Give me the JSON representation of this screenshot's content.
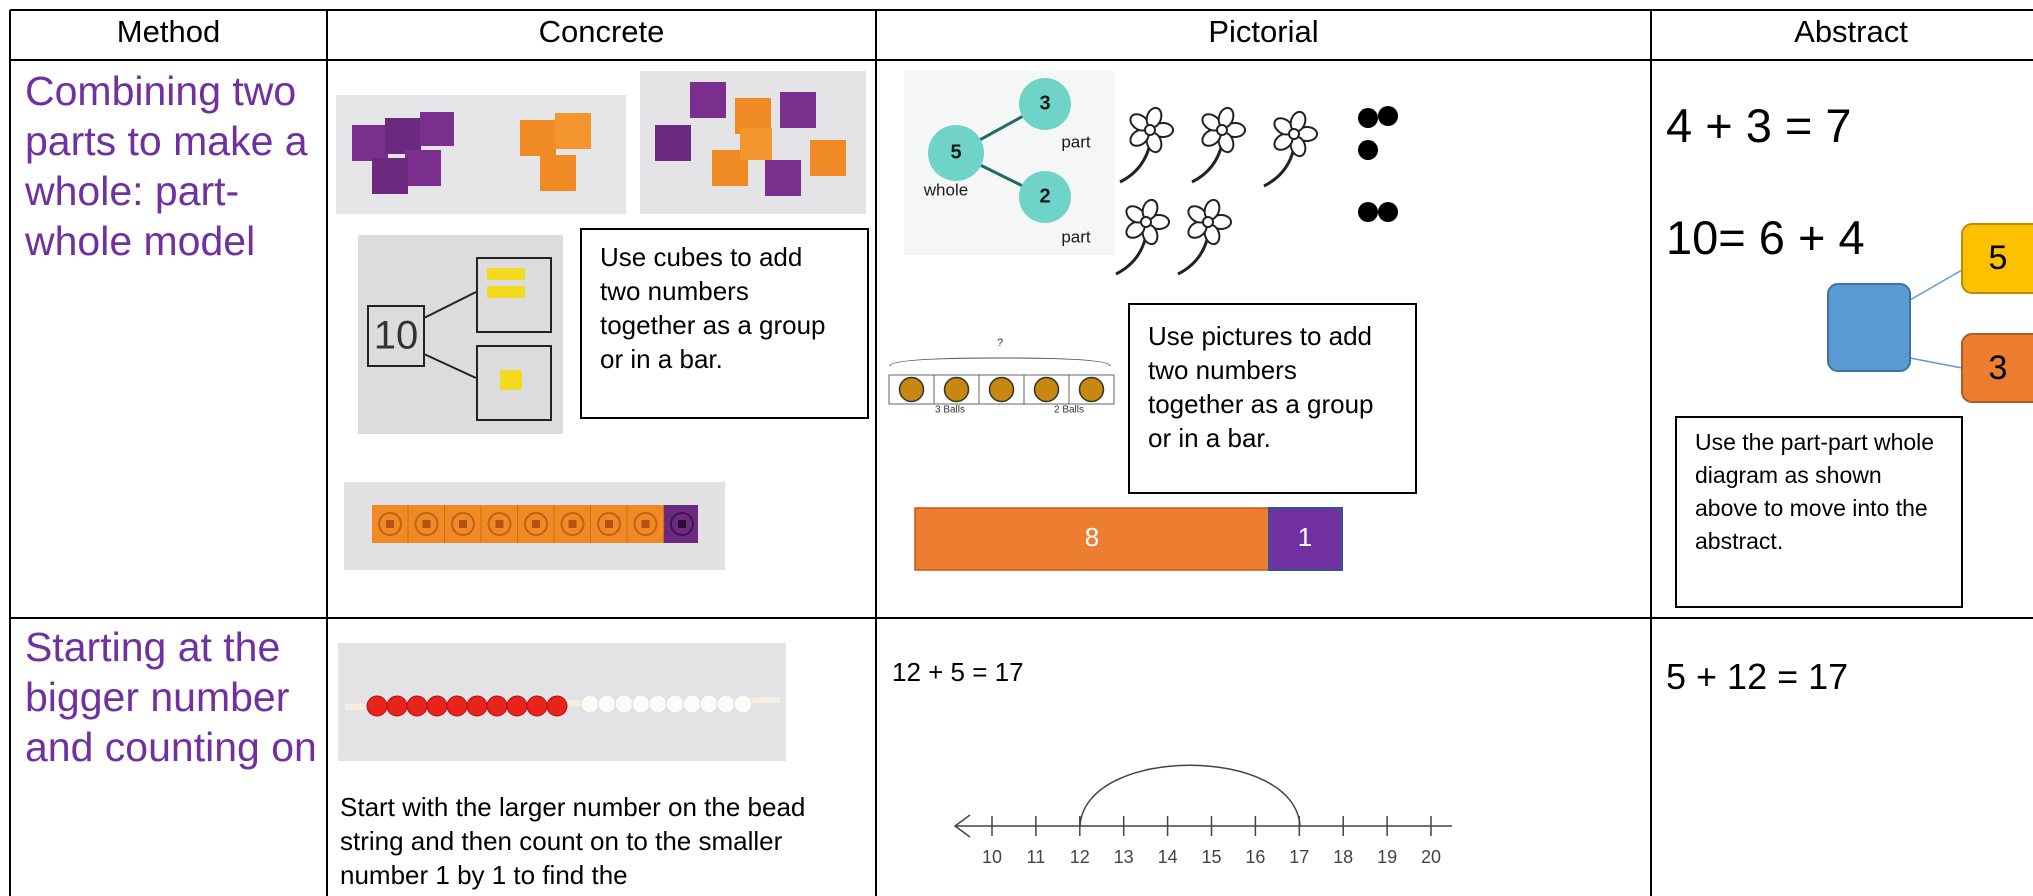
{
  "table": {
    "headers": [
      "Method",
      "Concrete",
      "Pictorial",
      "Abstract"
    ],
    "rows": [
      {
        "method": "Combining two parts to make a whole: part-whole model",
        "concrete": {
          "photo_label": "10",
          "note": "Use cubes to add two numbers together as a group or in a bar."
        },
        "pictorial": {
          "part_whole": {
            "whole_value": "5",
            "whole_label": "whole",
            "parts": [
              {
                "value": "3",
                "label": "part"
              },
              {
                "value": "2",
                "label": "part"
              }
            ]
          },
          "balls_question": "?",
          "balls_labels": [
            "3 Balls",
            "2 Balls"
          ],
          "note": "Use pictures to add two numbers together as a group or in a bar.",
          "bar_model": [
            "8",
            "1"
          ]
        },
        "abstract": {
          "equations": [
            "4 + 3 = 7",
            "10= 6 + 4"
          ],
          "diagram_parts": [
            "5",
            "3"
          ],
          "note": "Use the part-part whole diagram as shown above to move into the abstract."
        }
      },
      {
        "method": "Starting at the bigger number and counting on",
        "concrete": {
          "note": "Start with the larger number on the bead string and then count on to the smaller number 1 by 1 to find the"
        },
        "pictorial": {
          "equation": "12 + 5 = 17",
          "number_line": [
            "10",
            "11",
            "12",
            "13",
            "14",
            "15",
            "16",
            "17",
            "18",
            "19",
            "20"
          ]
        },
        "abstract": {
          "equations": [
            "5 + 12 = 17"
          ]
        }
      }
    ]
  }
}
